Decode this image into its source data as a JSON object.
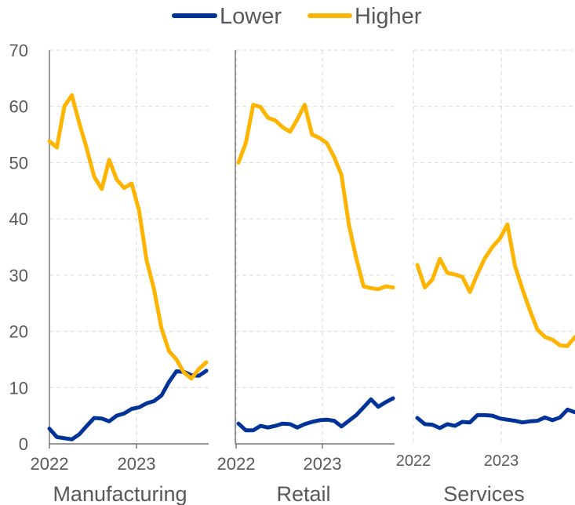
{
  "chart_data": {
    "type": "line",
    "legend": {
      "position": "top-center",
      "entries": [
        {
          "name": "Lower",
          "color": "#003399"
        },
        {
          "name": "Higher",
          "color": "#FFB400"
        }
      ]
    },
    "y_axis": {
      "ylim": [
        0,
        70
      ],
      "ticks": [
        "0",
        "10",
        "20",
        "30",
        "40",
        "50",
        "60",
        "70"
      ]
    },
    "grid": true,
    "panels": [
      {
        "label": "Manufacturing",
        "x_tick_labels": [
          "2022",
          "2023"
        ],
        "series": [
          {
            "name": "Lower",
            "color": "#003399",
            "values": [
              2.7,
              1.2,
              1.0,
              0.8,
              1.7,
              3.2,
              4.6,
              4.5,
              4.0,
              5.0,
              5.4,
              6.2,
              6.5,
              7.2,
              7.6,
              8.6,
              11.0,
              12.9,
              12.8,
              12.2,
              12.1,
              13.0
            ]
          },
          {
            "name": "Higher",
            "color": "#FFB400",
            "values": [
              53.8,
              52.7,
              60.0,
              62.0,
              57.0,
              52.5,
              47.5,
              45.3,
              50.5,
              47.0,
              45.5,
              46.3,
              41.5,
              32.7,
              27.5,
              20.5,
              16.5,
              15.0,
              12.7,
              11.6,
              13.3,
              14.5
            ]
          }
        ]
      },
      {
        "label": "Retail",
        "x_tick_labels": [
          "2022",
          "2023"
        ],
        "series": [
          {
            "name": "Lower",
            "color": "#003399",
            "values": [
              3.6,
              2.4,
              2.4,
              3.2,
              2.9,
              3.2,
              3.6,
              3.5,
              2.9,
              3.5,
              3.9,
              4.2,
              4.3,
              4.1,
              3.1,
              4.1,
              5.1,
              6.5,
              7.9,
              6.6,
              7.4,
              8.1
            ]
          },
          {
            "name": "Higher",
            "color": "#FFB400",
            "values": [
              50.0,
              53.5,
              60.3,
              59.9,
              58.0,
              57.5,
              56.3,
              55.5,
              57.7,
              60.3,
              55.0,
              54.4,
              53.5,
              51.0,
              47.8,
              39.0,
              33.0,
              28.0,
              27.7,
              27.5,
              28.0,
              27.8
            ]
          }
        ]
      },
      {
        "label": "Services",
        "x_tick_labels": [
          "2022",
          "2023"
        ],
        "series": [
          {
            "name": "Lower",
            "color": "#003399",
            "values": [
              4.6,
              3.5,
              3.4,
              2.8,
              3.5,
              3.2,
              3.9,
              3.8,
              5.1,
              5.1,
              5.0,
              4.5,
              4.3,
              4.1,
              3.8,
              4.0,
              4.1,
              4.7,
              4.2,
              4.7,
              6.1,
              5.6
            ]
          },
          {
            "name": "Higher",
            "color": "#FFB400",
            "values": [
              31.8,
              27.8,
              29.2,
              32.9,
              30.4,
              30.1,
              29.7,
              27.0,
              30.2,
              33.0,
              35.0,
              36.5,
              39.0,
              31.7,
              27.5,
              23.7,
              20.3,
              19.0,
              18.5,
              17.5,
              17.4,
              19.0
            ]
          }
        ]
      }
    ]
  }
}
